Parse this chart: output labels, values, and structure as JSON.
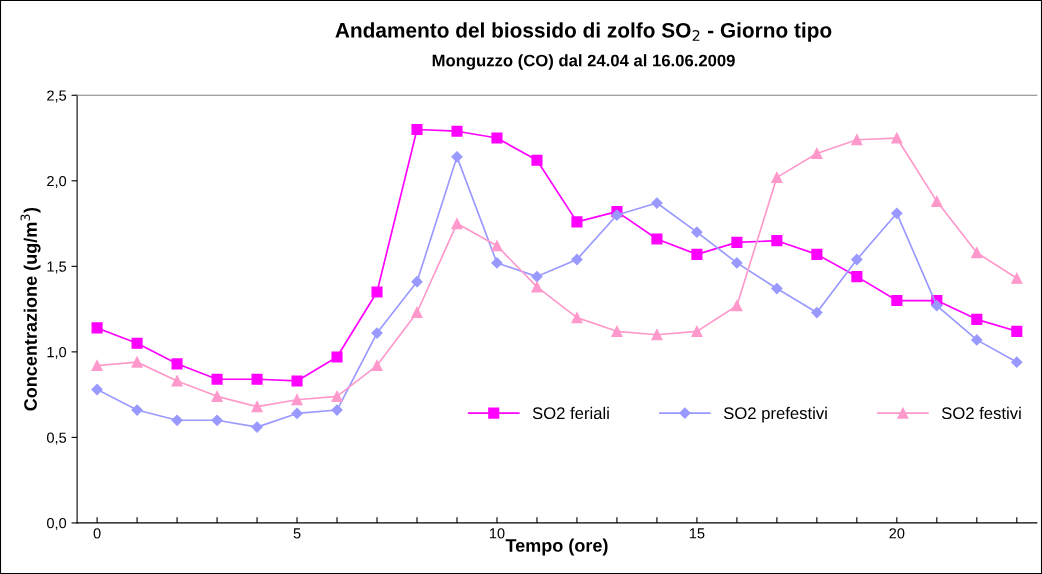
{
  "chart_data": {
    "type": "line",
    "title": "Andamento del biossido di zolfo SO$_{2}$ - Giorno tipo",
    "subtitle": "Monguzzo (CO) dal 24.04 al 16.06.2009",
    "xlabel": "Tempo (ore)",
    "ylabel": "Concentrazione (ug/m$^{3}$)",
    "x": [
      0,
      1,
      2,
      3,
      4,
      5,
      6,
      7,
      8,
      9,
      10,
      11,
      12,
      13,
      14,
      15,
      16,
      17,
      18,
      19,
      20,
      21,
      22,
      23
    ],
    "series": [
      {
        "name": "SO2 feriali",
        "color": "#ff00ff",
        "marker": "square",
        "values": [
          1.14,
          1.05,
          0.93,
          0.84,
          0.84,
          0.83,
          0.97,
          1.35,
          2.3,
          2.29,
          2.25,
          2.12,
          1.76,
          1.82,
          1.66,
          1.57,
          1.64,
          1.65,
          1.57,
          1.44,
          1.3,
          1.3,
          1.19,
          1.12
        ]
      },
      {
        "name": "SO2 prefestivi",
        "color": "#9999ff",
        "marker": "diamond",
        "values": [
          0.78,
          0.66,
          0.6,
          0.6,
          0.56,
          0.64,
          0.66,
          1.11,
          1.41,
          2.14,
          1.52,
          1.44,
          1.54,
          1.8,
          1.87,
          1.7,
          1.52,
          1.37,
          1.23,
          1.54,
          1.81,
          1.27,
          1.07,
          0.94
        ]
      },
      {
        "name": "SO2 festivi",
        "color": "#ff99cc",
        "marker": "triangle",
        "values": [
          0.92,
          0.94,
          0.83,
          0.74,
          0.68,
          0.72,
          0.74,
          0.92,
          1.23,
          1.75,
          1.62,
          1.38,
          1.2,
          1.12,
          1.1,
          1.12,
          1.27,
          2.02,
          2.16,
          2.24,
          2.25,
          1.88,
          1.58,
          1.43
        ]
      }
    ],
    "xlim": [
      -0.5,
      23.5
    ],
    "xticks": [
      0,
      {
        "value": 1,
        "label": null
      },
      {
        "value": 2,
        "label": null
      },
      {
        "value": 3,
        "label": null
      },
      {
        "value": 4,
        "label": null
      },
      5,
      {
        "value": 6,
        "label": null
      },
      {
        "value": 7,
        "label": null
      },
      {
        "value": 8,
        "label": null
      },
      {
        "value": 9,
        "label": null
      },
      10,
      {
        "value": 11,
        "label": null
      },
      {
        "value": 12,
        "label": null
      },
      {
        "value": 13,
        "label": null
      },
      {
        "value": 14,
        "label": null
      },
      15,
      {
        "value": 16,
        "label": null
      },
      {
        "value": 17,
        "label": null
      },
      {
        "value": 18,
        "label": null
      },
      {
        "value": 19,
        "label": null
      },
      20,
      {
        "value": 21,
        "label": null
      },
      {
        "value": 22,
        "label": null
      },
      {
        "value": 23,
        "label": null
      }
    ],
    "ylim": [
      0,
      2.5
    ],
    "yticks": [
      {
        "value": 0,
        "label": "0,0"
      },
      {
        "value": 0.5,
        "label": "0,5"
      },
      {
        "value": 1,
        "label": "1,0"
      },
      {
        "value": 1.5,
        "label": "1,5"
      },
      {
        "value": 2,
        "label": "2,0"
      },
      {
        "value": 2.5,
        "label": "2,5"
      }
    ],
    "grid": false,
    "legend": "bottom right",
    "line_style": "solid"
  }
}
